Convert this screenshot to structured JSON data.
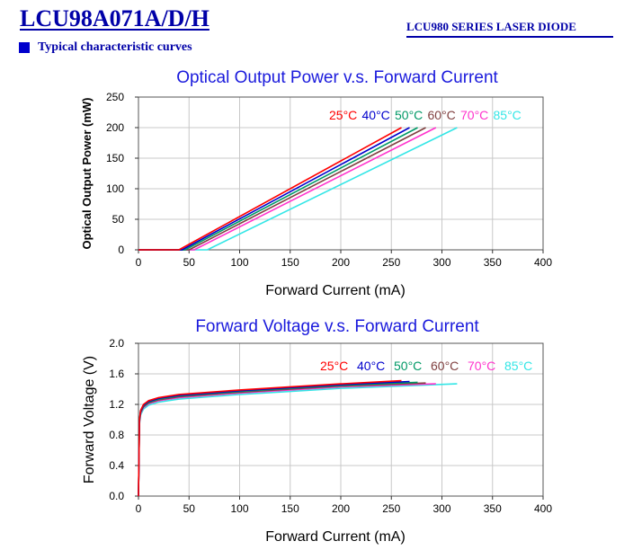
{
  "header": {
    "part_number": "LCU98A071A/D/H",
    "series": "LCU980 SERIES LASER DIODE",
    "section_title": "Typical characteristic curves",
    "accent_color": "#0000a8"
  },
  "chart_data": [
    {
      "type": "line",
      "title": "Optical Output Power v.s. Forward Current",
      "xlabel": "Forward Current (mA)",
      "ylabel": "Optical Output Power (mW)",
      "xlim": [
        0,
        400
      ],
      "ylim": [
        0,
        250
      ],
      "xticks": [
        0,
        50,
        100,
        150,
        200,
        250,
        300,
        350,
        400
      ],
      "yticks": [
        0,
        50,
        100,
        150,
        200,
        250
      ],
      "grid": true,
      "legend": "top-right inline",
      "series": [
        {
          "name": "25°C",
          "color": "#ff0000",
          "x": [
            0,
            40,
            260
          ],
          "y": [
            0,
            0,
            200
          ]
        },
        {
          "name": "40°C",
          "color": "#0000cc",
          "x": [
            0,
            43,
            268
          ],
          "y": [
            0,
            0,
            200
          ]
        },
        {
          "name": "50°C",
          "color": "#009966",
          "x": [
            0,
            46,
            276
          ],
          "y": [
            0,
            0,
            200
          ]
        },
        {
          "name": "60°C",
          "color": "#804040",
          "x": [
            0,
            50,
            284
          ],
          "y": [
            0,
            0,
            200
          ]
        },
        {
          "name": "70°C",
          "color": "#ff33cc",
          "x": [
            0,
            55,
            294
          ],
          "y": [
            0,
            0,
            200
          ]
        },
        {
          "name": "85°C",
          "color": "#33e6e6",
          "x": [
            0,
            68,
            315
          ],
          "y": [
            0,
            0,
            200
          ]
        }
      ]
    },
    {
      "type": "line",
      "title": "Forward Voltage v.s. Forward Current",
      "xlabel": "Forward Current (mA)",
      "ylabel": "Forward Voltage (V)",
      "xlim": [
        0,
        400
      ],
      "ylim": [
        0,
        2.0
      ],
      "xticks": [
        0,
        50,
        100,
        150,
        200,
        250,
        300,
        350,
        400
      ],
      "yticks": [
        "0.0",
        "0.4",
        "0.8",
        "1.2",
        "1.6",
        "2.0"
      ],
      "grid": true,
      "legend": "top-right inline",
      "series": [
        {
          "name": "25°C",
          "color": "#ff0000",
          "x": [
            0,
            1,
            2,
            5,
            10,
            20,
            40,
            70,
            100,
            150,
            200,
            260
          ],
          "y": [
            0,
            1.0,
            1.12,
            1.2,
            1.25,
            1.29,
            1.33,
            1.36,
            1.39,
            1.43,
            1.47,
            1.51
          ]
        },
        {
          "name": "40°C",
          "color": "#0000cc",
          "x": [
            0,
            1,
            2,
            5,
            10,
            20,
            40,
            70,
            100,
            150,
            200,
            268
          ],
          "y": [
            0,
            0.99,
            1.11,
            1.19,
            1.24,
            1.28,
            1.32,
            1.35,
            1.38,
            1.42,
            1.46,
            1.5
          ]
        },
        {
          "name": "50°C",
          "color": "#009966",
          "x": [
            0,
            1,
            2,
            5,
            10,
            20,
            40,
            70,
            100,
            150,
            200,
            276
          ],
          "y": [
            0,
            0.98,
            1.1,
            1.18,
            1.23,
            1.27,
            1.31,
            1.34,
            1.37,
            1.41,
            1.45,
            1.49
          ]
        },
        {
          "name": "60°C",
          "color": "#804040",
          "x": [
            0,
            1,
            2,
            5,
            10,
            20,
            40,
            70,
            100,
            150,
            200,
            284
          ],
          "y": [
            0,
            0.97,
            1.09,
            1.17,
            1.22,
            1.26,
            1.3,
            1.33,
            1.36,
            1.4,
            1.44,
            1.48
          ]
        },
        {
          "name": "70°C",
          "color": "#ff33cc",
          "x": [
            0,
            1,
            2,
            5,
            10,
            20,
            40,
            70,
            100,
            150,
            200,
            294
          ],
          "y": [
            0,
            0.96,
            1.08,
            1.16,
            1.21,
            1.25,
            1.29,
            1.32,
            1.35,
            1.39,
            1.43,
            1.47
          ]
        },
        {
          "name": "85°C",
          "color": "#33e6e6",
          "x": [
            0,
            1,
            2,
            5,
            10,
            20,
            40,
            70,
            100,
            150,
            200,
            315
          ],
          "y": [
            0,
            0.94,
            1.06,
            1.14,
            1.19,
            1.23,
            1.27,
            1.3,
            1.33,
            1.37,
            1.41,
            1.47
          ]
        }
      ]
    }
  ]
}
